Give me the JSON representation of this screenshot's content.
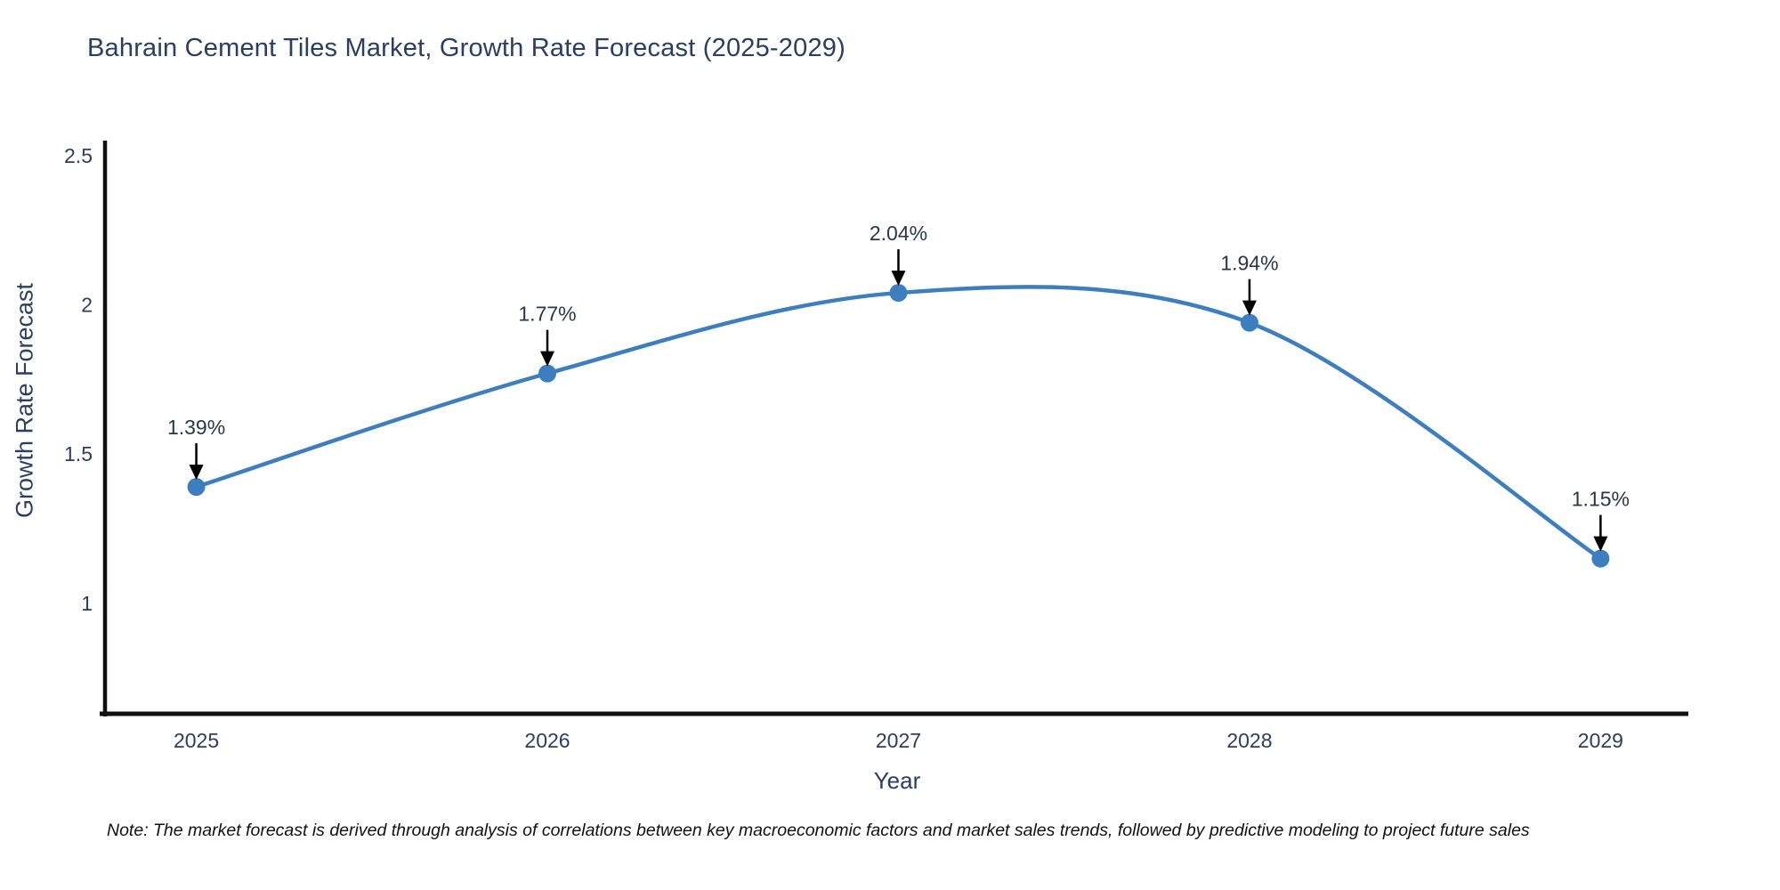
{
  "title": "Bahrain Cement Tiles Market, Growth Rate Forecast (2025-2029)",
  "note": "Note: The market forecast is derived through analysis of correlations between key macroeconomic factors and market sales trends, followed by predictive modeling to project future sales",
  "chart_data": {
    "type": "line",
    "title": "Bahrain Cement Tiles Market, Growth Rate Forecast (2025-2029)",
    "xlabel": "Year",
    "ylabel": "Growth Rate Forecast",
    "x": [
      2025,
      2026,
      2027,
      2028,
      2029
    ],
    "values": [
      1.39,
      1.77,
      2.04,
      1.94,
      1.15
    ],
    "point_labels": [
      "1.39%",
      "1.77%",
      "2.04%",
      "1.94%",
      "1.15%"
    ],
    "xtick_labels": [
      "2025",
      "2026",
      "2027",
      "2028",
      "2029"
    ],
    "ytick_values": [
      1,
      1.5,
      2,
      2.5
    ],
    "ytick_labels": [
      "1",
      "1.5",
      "2",
      "2.5"
    ],
    "xlim": [
      2024.74,
      2029.25
    ],
    "ylim": [
      0.63,
      2.55
    ],
    "grid": false,
    "legend": "none",
    "line_smoothing": true,
    "colors": {
      "line": "#3d7ebf",
      "marker": "#3d7ebf",
      "annotation_text": "#2a3745",
      "annotation_arrow": "#000000",
      "axis_line": "#111111",
      "tick_text": "#2a3f5f"
    }
  }
}
